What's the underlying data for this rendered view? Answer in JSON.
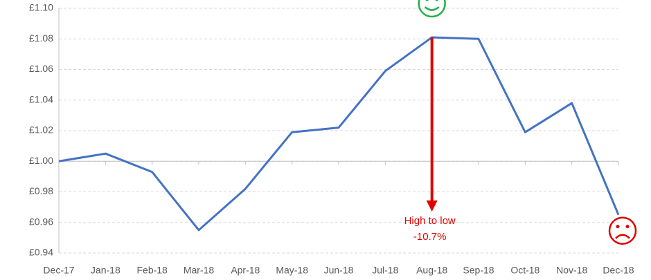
{
  "chart_data": {
    "type": "line",
    "categories": [
      "Dec-17",
      "Jan-18",
      "Feb-18",
      "Mar-18",
      "Apr-18",
      "May-18",
      "Jun-18",
      "Jul-18",
      "Aug-18",
      "Sep-18",
      "Oct-18",
      "Nov-18",
      "Dec-18"
    ],
    "series": [
      {
        "name": "Value",
        "color": "#4472c4",
        "values": [
          1.0,
          1.005,
          0.993,
          0.955,
          0.982,
          1.019,
          1.022,
          1.059,
          1.081,
          1.08,
          1.019,
          1.038,
          0.965
        ]
      }
    ],
    "ylim": [
      0.94,
      1.1
    ],
    "yticks": [
      {
        "value": 0.94,
        "label": "£0.94"
      },
      {
        "value": 0.96,
        "label": "£0.96"
      },
      {
        "value": 0.98,
        "label": "£0.98"
      },
      {
        "value": 1.0,
        "label": "£1.00"
      },
      {
        "value": 1.02,
        "label": "£1.02"
      },
      {
        "value": 1.04,
        "label": "£1.04"
      },
      {
        "value": 1.06,
        "label": "£1.06"
      },
      {
        "value": 1.08,
        "label": "£1.08"
      },
      {
        "value": 1.1,
        "label": "£1.10"
      }
    ],
    "x_axis_crossing": 1.0,
    "grid": true,
    "annotations": [
      "High to low",
      "-10.7%"
    ]
  }
}
